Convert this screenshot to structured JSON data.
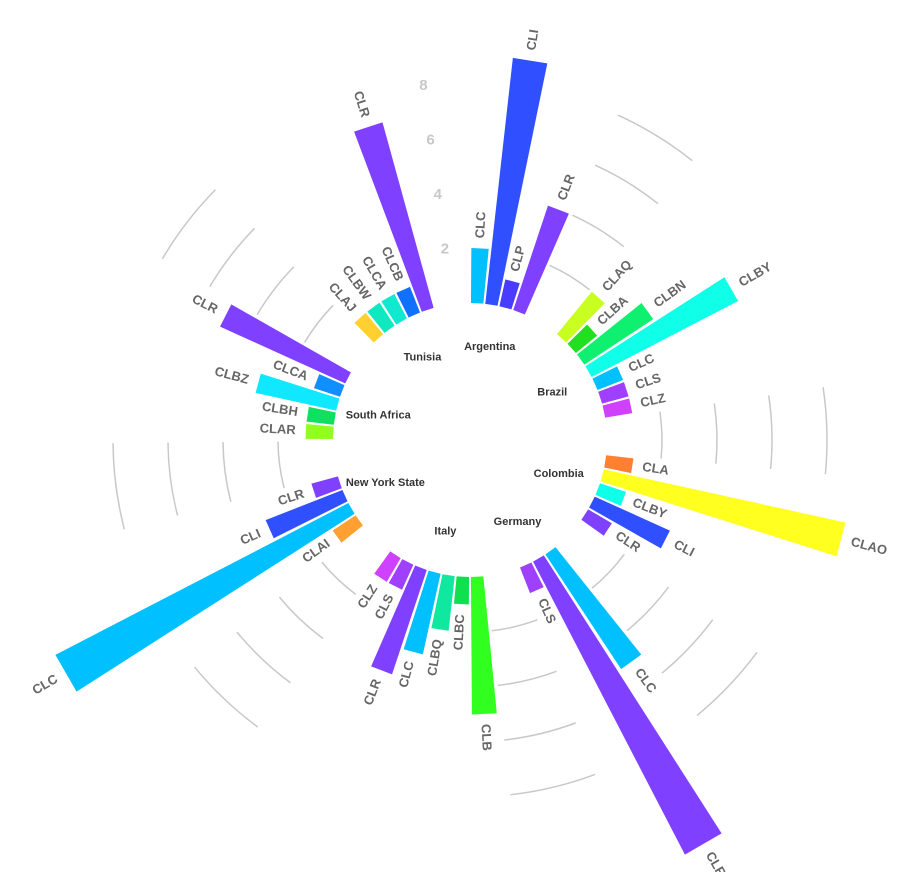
{
  "chart_data": {
    "type": "radial_bar",
    "rlim": [
      0,
      8
    ],
    "rticks": [
      2,
      4,
      6,
      8
    ],
    "grid": true,
    "groups": [
      {
        "name": "Argentina",
        "categories": [
          "CLC",
          "CLI",
          "CLP",
          "CLR"
        ],
        "values": [
          2,
          9,
          1,
          4
        ],
        "colors": [
          "#00c0ff",
          "#3050ff",
          "#4a3cff",
          "#8040ff"
        ]
      },
      {
        "name": "Brazil",
        "categories": [
          "CLAQ",
          "CLBA",
          "CLBN",
          "CLBY",
          "CLC",
          "CLS",
          "CLZ"
        ],
        "values": [
          2,
          1,
          3,
          6,
          1,
          1,
          1
        ],
        "colors": [
          "#c8ff20",
          "#20e020",
          "#10f070",
          "#10ffe8",
          "#00c0ff",
          "#a040ff",
          "#d040ff"
        ]
      },
      {
        "name": "Colombia",
        "categories": [
          "CLA",
          "CLAO",
          "CLBY",
          "CLI",
          "CLR"
        ],
        "values": [
          1,
          9,
          1,
          3,
          1
        ],
        "colors": [
          "#ff8030",
          "#ffff20",
          "#10ffe8",
          "#3050ff",
          "#8040ff"
        ]
      },
      {
        "name": "Germany",
        "categories": [
          "CLC",
          "CLR",
          "CLS"
        ],
        "values": [
          5,
          12,
          1
        ],
        "colors": [
          "#00c0ff",
          "#8040ff",
          "#a040ff"
        ]
      },
      {
        "name": "Italy",
        "categories": [
          "CLB",
          "CLBC",
          "CLBQ",
          "CLC",
          "CLR",
          "CLS",
          "CLZ"
        ],
        "values": [
          5,
          1,
          2,
          3,
          4,
          1,
          1
        ],
        "colors": [
          "#30ff20",
          "#10e050",
          "#10e8a0",
          "#00c0ff",
          "#8040ff",
          "#a040ff",
          "#d040ff"
        ]
      },
      {
        "name": "New York State",
        "categories": [
          "CLAI",
          "CLC",
          "CLI",
          "CLR"
        ],
        "values": [
          1,
          12,
          3,
          1
        ],
        "colors": [
          "#ffa030",
          "#00c0ff",
          "#3050ff",
          "#8040ff"
        ]
      },
      {
        "name": "South Africa",
        "categories": [
          "CLAR",
          "CLBH",
          "CLBZ",
          "CLCA",
          "CLR"
        ],
        "values": [
          1,
          1,
          3,
          1,
          5
        ],
        "colors": [
          "#90ff20",
          "#10e060",
          "#10e8ff",
          "#1090ff",
          "#8040ff"
        ]
      },
      {
        "name": "Tunisia",
        "categories": [
          "CLAJ",
          "CLBW",
          "CLCA",
          "CLCB",
          "CLR"
        ],
        "values": [
          1,
          1,
          1,
          1,
          7
        ],
        "colors": [
          "#ffd030",
          "#10e8c0",
          "#10e8d0",
          "#1070ff",
          "#8040ff"
        ]
      }
    ]
  }
}
